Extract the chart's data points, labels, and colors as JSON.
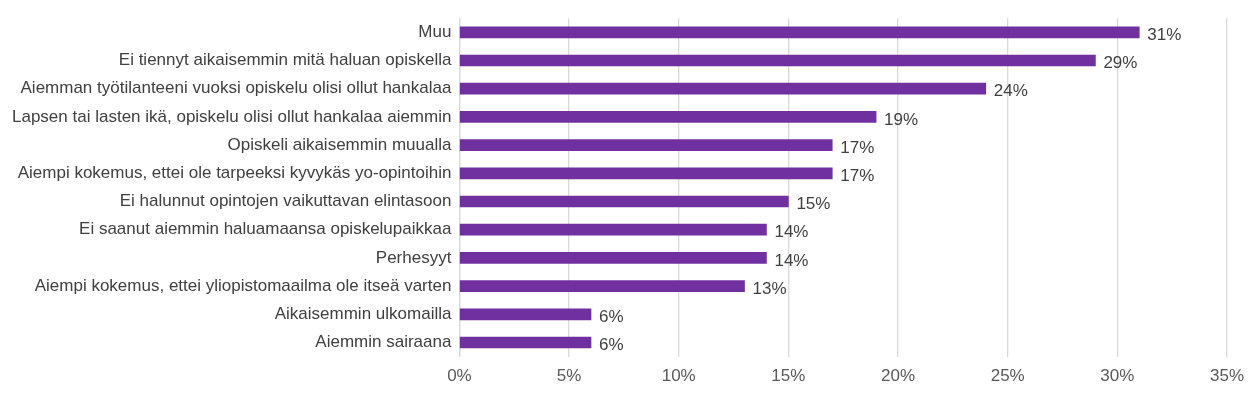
{
  "chart_data": {
    "type": "bar",
    "orientation": "horizontal",
    "categories": [
      "Muu",
      "Ei tiennyt aikaisemmin mitä haluan opiskella",
      "Aiemman työtilanteeni vuoksi opiskelu olisi ollut hankalaa",
      "Lapsen tai lasten ikä, opiskelu olisi ollut hankalaa aiemmin",
      "Opiskeli aikaisemmin muualla",
      "Aiempi kokemus, ettei ole tarpeeksi kyvykäs yo-opintoihin",
      "Ei halunnut opintojen vaikuttavan elintasoon",
      "Ei saanut aiemmin haluamaansa opiskelupaikkaa",
      "Perhesyyt",
      "Aiempi kokemus, ettei yliopistomaailma ole itseä varten",
      "Aikaisemmin ulkomailla",
      "Aiemmin sairaana"
    ],
    "values": [
      31,
      29,
      24,
      19,
      17,
      17,
      15,
      14,
      14,
      13,
      6,
      6
    ],
    "value_labels": [
      "31%",
      "29%",
      "24%",
      "19%",
      "17%",
      "17%",
      "15%",
      "14%",
      "14%",
      "13%",
      "6%",
      "6%"
    ],
    "color": "#7030a0",
    "xlim": [
      0,
      35
    ],
    "xticks": [
      {
        "value": 0,
        "label": "0%"
      },
      {
        "value": 5,
        "label": "5%"
      },
      {
        "value": 10,
        "label": "10%"
      },
      {
        "value": 15,
        "label": "15%"
      },
      {
        "value": 20,
        "label": "20%"
      },
      {
        "value": 25,
        "label": "25%"
      },
      {
        "value": 30,
        "label": "30%"
      },
      {
        "value": 35,
        "label": "35%"
      }
    ],
    "grid": "x",
    "legend": false
  }
}
